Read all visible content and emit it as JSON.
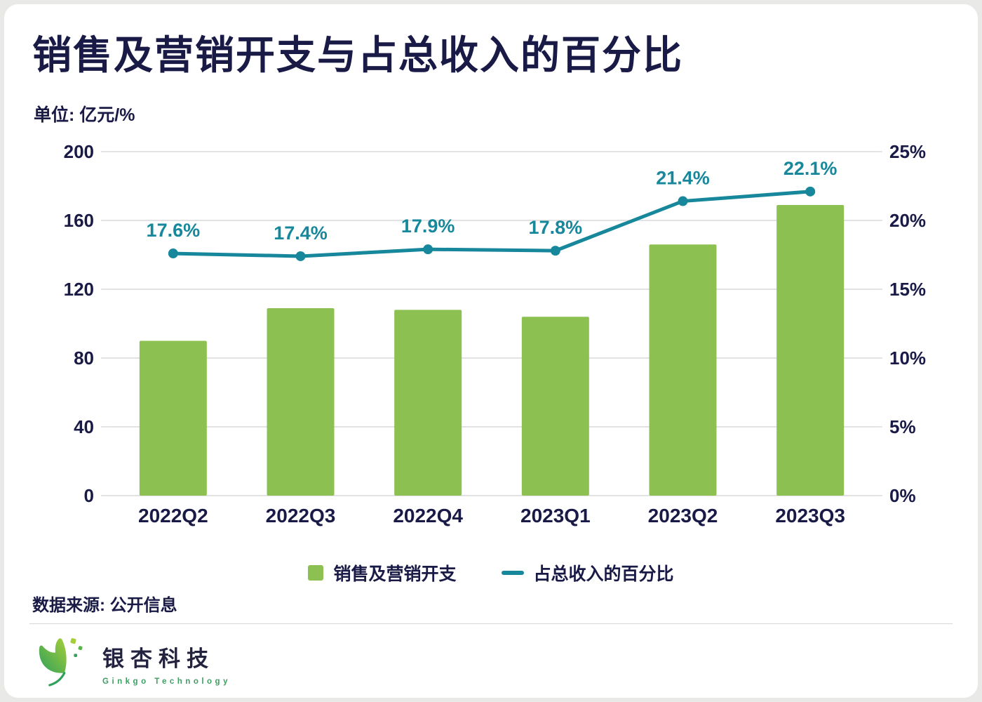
{
  "page": {
    "title": "销售及营销开支与占总收入的百分比",
    "unit_label": "单位: 亿元/%",
    "source_label": "数据来源: 公开信息",
    "brand": {
      "name": "银杏科技",
      "subtitle": "Ginkgo Technology"
    }
  },
  "colors": {
    "bar": "#8CC152",
    "line": "#17879B",
    "text": "#1A1A47",
    "grid": "#D8D8D8",
    "card_bg": "#FFFFFF",
    "page_bg": "#E9E9E7",
    "brand_green": "#3F9E62"
  },
  "chart_data": {
    "type": "bar+line",
    "title": "销售及营销开支与占总收入的百分比",
    "unit": "亿元/%",
    "categories": [
      "2022Q2",
      "2022Q3",
      "2022Q4",
      "2023Q1",
      "2023Q2",
      "2023Q3"
    ],
    "series": [
      {
        "name": "销售及营销开支",
        "type": "bar",
        "axis": "left",
        "values": [
          90,
          109,
          108,
          104,
          146,
          169
        ]
      },
      {
        "name": "占总收入的百分比",
        "type": "line",
        "axis": "right",
        "values": [
          17.6,
          17.4,
          17.9,
          17.8,
          21.4,
          22.1
        ],
        "labels": [
          "17.6%",
          "17.4%",
          "17.9%",
          "17.8%",
          "21.4%",
          "22.1%"
        ]
      }
    ],
    "left_axis": {
      "min": 0,
      "max": 200,
      "ticks": [
        0,
        40,
        80,
        120,
        160,
        200
      ]
    },
    "right_axis": {
      "min": 0,
      "max": 25,
      "ticks": [
        "0%",
        "5%",
        "10%",
        "15%",
        "20%",
        "25%"
      ]
    },
    "legend": [
      "销售及营销开支",
      "占总收入的百分比"
    ],
    "grid": true,
    "legend_position": "bottom"
  }
}
